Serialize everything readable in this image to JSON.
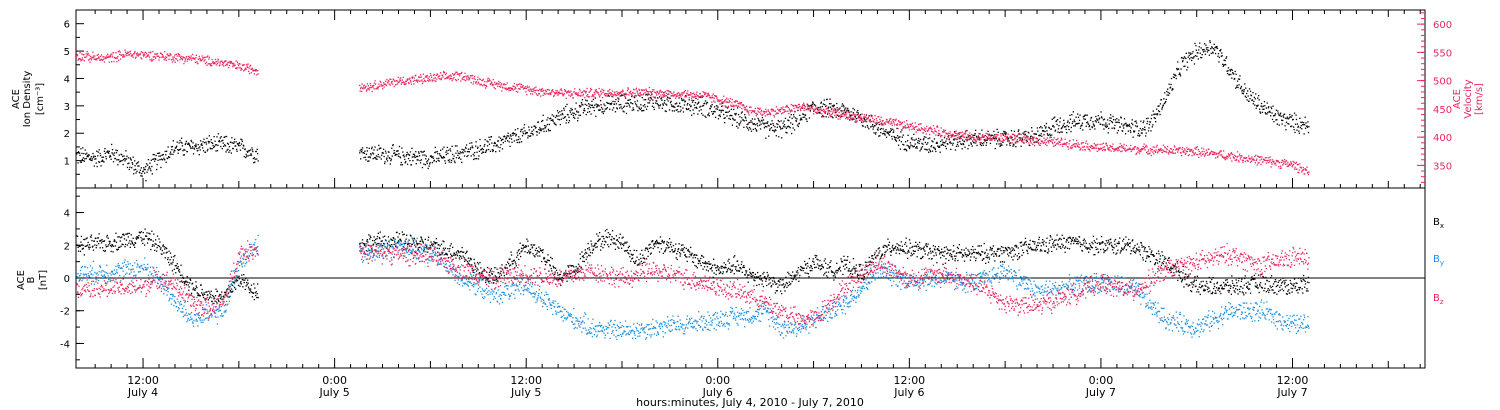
{
  "chart_data": [
    {
      "type": "scatter",
      "panel": "top",
      "ylabel_left": [
        "ACE",
        "Ion Density",
        "[cm⁻³]"
      ],
      "ylabel_right": [
        "ACE",
        "Velocity",
        "[km/s]"
      ],
      "ylim_left": [
        0,
        6.5
      ],
      "ylim_right": [
        310,
        625
      ],
      "yticks_left": [
        "1",
        "2",
        "3",
        "4",
        "5",
        "6"
      ],
      "yticks_right": [
        "350",
        "400",
        "450",
        "500",
        "550",
        "600"
      ],
      "xlim_hours": [
        -4.2,
        80.3
      ],
      "series": [
        {
          "name": "Ion Density",
          "axis": "left",
          "color": "#000000",
          "points": [
            [
              -4.2,
              1.2
            ],
            [
              -3,
              1.1
            ],
            [
              -2,
              1.3
            ],
            [
              -1,
              1.0
            ],
            [
              0,
              0.6
            ],
            [
              1,
              1.1
            ],
            [
              2,
              1.5
            ],
            [
              3,
              1.5
            ],
            [
              4,
              1.6
            ],
            [
              5,
              1.6
            ],
            [
              6,
              1.5
            ],
            [
              7,
              1.3
            ],
            [
              14,
              1.3
            ],
            [
              16,
              1.2
            ],
            [
              18,
              1.1
            ],
            [
              20,
              1.3
            ],
            [
              22,
              1.6
            ],
            [
              24,
              2.0
            ],
            [
              25,
              2.3
            ],
            [
              26,
              2.6
            ],
            [
              27,
              2.8
            ],
            [
              28,
              3.0
            ],
            [
              30,
              3.1
            ],
            [
              32,
              3.2
            ],
            [
              33,
              3.1
            ],
            [
              35,
              3.0
            ],
            [
              37,
              2.6
            ],
            [
              39,
              2.2
            ],
            [
              40,
              2.2
            ],
            [
              41,
              2.5
            ],
            [
              42,
              3.0
            ],
            [
              44,
              2.8
            ],
            [
              45,
              2.6
            ],
            [
              46,
              2.2
            ],
            [
              47,
              1.9
            ],
            [
              48,
              1.7
            ],
            [
              49,
              1.6
            ],
            [
              50,
              1.7
            ],
            [
              52,
              1.8
            ],
            [
              54,
              1.8
            ],
            [
              56,
              1.9
            ],
            [
              57,
              2.3
            ],
            [
              58,
              2.4
            ],
            [
              59,
              2.5
            ],
            [
              60,
              2.5
            ],
            [
              61,
              2.3
            ],
            [
              62,
              2.2
            ],
            [
              63,
              2.3
            ],
            [
              64,
              3.3
            ],
            [
              65,
              4.5
            ],
            [
              66,
              5.0
            ],
            [
              67,
              5.2
            ],
            [
              68,
              4.4
            ],
            [
              69,
              3.5
            ],
            [
              70,
              3.0
            ],
            [
              71,
              2.6
            ],
            [
              72,
              2.4
            ],
            [
              73,
              2.3
            ]
          ]
        },
        {
          "name": "Velocity",
          "axis": "right",
          "color": "#e8285e",
          "points": [
            [
              -4.2,
              545
            ],
            [
              -2.5,
              540
            ],
            [
              -1,
              548
            ],
            [
              1,
              545
            ],
            [
              3,
              540
            ],
            [
              5,
              532
            ],
            [
              7,
              520
            ],
            [
              14,
              490
            ],
            [
              16,
              500
            ],
            [
              18,
              505
            ],
            [
              20,
              510
            ],
            [
              21,
              500
            ],
            [
              23,
              490
            ],
            [
              25,
              482
            ],
            [
              27,
              478
            ],
            [
              29,
              480
            ],
            [
              31,
              480
            ],
            [
              33,
              478
            ],
            [
              35,
              475
            ],
            [
              37,
              460
            ],
            [
              38,
              448
            ],
            [
              39,
              445
            ],
            [
              40,
              448
            ],
            [
              41,
              455
            ],
            [
              42,
              450
            ],
            [
              44,
              440
            ],
            [
              46,
              430
            ],
            [
              48,
              420
            ],
            [
              50,
              410
            ],
            [
              52,
              400
            ],
            [
              54,
              400
            ],
            [
              56,
              395
            ],
            [
              58,
              390
            ],
            [
              60,
              382
            ],
            [
              62,
              380
            ],
            [
              64,
              378
            ],
            [
              66,
              375
            ],
            [
              68,
              368
            ],
            [
              70,
              360
            ],
            [
              72,
              352
            ],
            [
              73,
              340
            ]
          ]
        }
      ],
      "gaps_hours": [
        [
          7.2,
          13.5
        ]
      ]
    },
    {
      "type": "scatter",
      "panel": "bottom",
      "ylabel_left": [
        "ACE",
        "B",
        "[nT]"
      ],
      "ylim": [
        -5.5,
        5.5
      ],
      "yticks": [
        "-4",
        "-2",
        "0",
        "2",
        "4"
      ],
      "xlim_hours": [
        -4.2,
        80.3
      ],
      "series": [
        {
          "name": "B_x",
          "label_main": "B",
          "label_sub": "x",
          "color": "#000000",
          "points": [
            [
              -4.2,
              2.0
            ],
            [
              -2,
              2.2
            ],
            [
              0,
              2.6
            ],
            [
              1,
              2.0
            ],
            [
              2,
              0.8
            ],
            [
              3,
              -0.5
            ],
            [
              4,
              -1.0
            ],
            [
              5,
              -1.2
            ],
            [
              6,
              0.0
            ],
            [
              7,
              -0.8
            ],
            [
              14,
              2.2
            ],
            [
              16,
              2.3
            ],
            [
              18,
              2.0
            ],
            [
              20,
              1.5
            ],
            [
              21,
              0.5
            ],
            [
              22,
              0.0
            ],
            [
              23,
              1.0
            ],
            [
              24,
              2.0
            ],
            [
              25,
              1.5
            ],
            [
              26,
              0.0
            ],
            [
              27,
              0.5
            ],
            [
              28,
              2.0
            ],
            [
              29,
              2.5
            ],
            [
              30,
              2.2
            ],
            [
              31,
              1.0
            ],
            [
              32,
              2.2
            ],
            [
              33,
              2.0
            ],
            [
              34,
              1.5
            ],
            [
              36,
              0.5
            ],
            [
              37,
              0.8
            ],
            [
              38,
              0.2
            ],
            [
              39,
              0.0
            ],
            [
              40,
              -0.5
            ],
            [
              41,
              0.3
            ],
            [
              42,
              1.0
            ],
            [
              43,
              0.5
            ],
            [
              44,
              0.8
            ],
            [
              45,
              0.3
            ],
            [
              46,
              1.5
            ],
            [
              47,
              2.0
            ],
            [
              48,
              1.8
            ],
            [
              50,
              1.5
            ],
            [
              52,
              1.5
            ],
            [
              54,
              1.6
            ],
            [
              56,
              2.0
            ],
            [
              58,
              2.2
            ],
            [
              60,
              2.0
            ],
            [
              62,
              2.0
            ],
            [
              64,
              1.0
            ],
            [
              66,
              -0.5
            ],
            [
              68,
              -0.5
            ],
            [
              70,
              -0.3
            ],
            [
              72,
              -0.5
            ],
            [
              73,
              -0.2
            ]
          ]
        },
        {
          "name": "B_y",
          "label_main": "B",
          "label_sub": "y",
          "color": "#1d8fe0",
          "points": [
            [
              -4.2,
              0.3
            ],
            [
              -2,
              0.4
            ],
            [
              0,
              0.7
            ],
            [
              1,
              0.0
            ],
            [
              2,
              -1.5
            ],
            [
              3,
              -2.5
            ],
            [
              4,
              -2.3
            ],
            [
              5,
              -2.0
            ],
            [
              6,
              1.0
            ],
            [
              7,
              2.0
            ],
            [
              14,
              1.5
            ],
            [
              16,
              2.0
            ],
            [
              18,
              1.5
            ],
            [
              20,
              0.0
            ],
            [
              22,
              -1.0
            ],
            [
              24,
              -0.5
            ],
            [
              26,
              -2.0
            ],
            [
              28,
              -3.0
            ],
            [
              30,
              -3.2
            ],
            [
              32,
              -3.0
            ],
            [
              34,
              -2.8
            ],
            [
              36,
              -2.5
            ],
            [
              37,
              -2.3
            ],
            [
              38,
              -2.2
            ],
            [
              39,
              -2.0
            ],
            [
              40,
              -3.0
            ],
            [
              41,
              -3.0
            ],
            [
              42,
              -2.5
            ],
            [
              44,
              -1.5
            ],
            [
              46,
              0.5
            ],
            [
              48,
              -0.2
            ],
            [
              50,
              0.0
            ],
            [
              52,
              -0.3
            ],
            [
              54,
              0.5
            ],
            [
              56,
              -0.8
            ],
            [
              58,
              -0.5
            ],
            [
              60,
              -0.2
            ],
            [
              62,
              -0.6
            ],
            [
              64,
              -2.5
            ],
            [
              66,
              -3.0
            ],
            [
              68,
              -2.0
            ],
            [
              70,
              -2.0
            ],
            [
              72,
              -2.8
            ],
            [
              73,
              -2.8
            ]
          ]
        },
        {
          "name": "B_z",
          "label_main": "B",
          "label_sub": "z",
          "color": "#e8285e",
          "points": [
            [
              -4.2,
              -0.4
            ],
            [
              -2,
              -0.6
            ],
            [
              0,
              -0.5
            ],
            [
              1,
              0.0
            ],
            [
              2,
              -0.4
            ],
            [
              3,
              -1.5
            ],
            [
              4,
              -1.8
            ],
            [
              5,
              -1.5
            ],
            [
              6,
              1.5
            ],
            [
              7,
              1.8
            ],
            [
              14,
              1.6
            ],
            [
              16,
              1.5
            ],
            [
              18,
              1.4
            ],
            [
              20,
              0.5
            ],
            [
              22,
              0.0
            ],
            [
              24,
              0.3
            ],
            [
              26,
              0.0
            ],
            [
              28,
              0.5
            ],
            [
              30,
              0.0
            ],
            [
              32,
              0.5
            ],
            [
              34,
              0.0
            ],
            [
              36,
              -0.5
            ],
            [
              38,
              -1.0
            ],
            [
              40,
              -2.0
            ],
            [
              41,
              -2.5
            ],
            [
              42,
              -2.5
            ],
            [
              44,
              -0.5
            ],
            [
              46,
              1.0
            ],
            [
              48,
              0.0
            ],
            [
              50,
              0.3
            ],
            [
              52,
              -0.3
            ],
            [
              54,
              -1.5
            ],
            [
              56,
              -1.7
            ],
            [
              58,
              -1.0
            ],
            [
              60,
              -0.3
            ],
            [
              62,
              -0.8
            ],
            [
              64,
              0.5
            ],
            [
              66,
              1.0
            ],
            [
              68,
              1.5
            ],
            [
              70,
              0.8
            ],
            [
              72,
              1.3
            ],
            [
              73,
              1.2
            ]
          ]
        }
      ],
      "gaps_hours": [
        [
          7.2,
          13.5
        ]
      ]
    }
  ],
  "x_axis": {
    "ticks": [
      {
        "hours": 0,
        "time": "12:00",
        "date": "July 4"
      },
      {
        "hours": 12,
        "time": "0:00",
        "date": "July 5"
      },
      {
        "hours": 24,
        "time": "12:00",
        "date": "July 5"
      },
      {
        "hours": 36,
        "time": "0:00",
        "date": "July 6"
      },
      {
        "hours": 48,
        "time": "12:00",
        "date": "July 6"
      },
      {
        "hours": 60,
        "time": "0:00",
        "date": "July 7"
      },
      {
        "hours": 72,
        "time": "12:00",
        "date": "July 7"
      }
    ],
    "label": "hours:minutes, July  4, 2010 - July  7, 2010"
  }
}
